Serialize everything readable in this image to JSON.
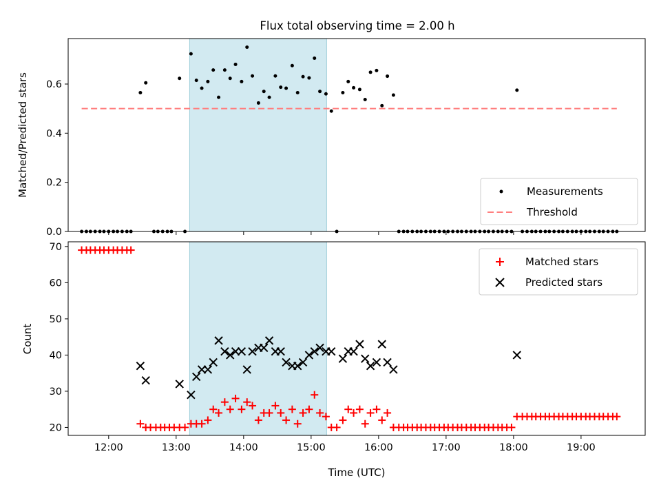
{
  "figure": {
    "title": "Flux total observing time = 2.00 h"
  },
  "colors": {
    "measurement": "#000000",
    "threshold": "#ff7f7f",
    "matched": "#ff0000",
    "predicted": "#000000",
    "span": "#add8e6"
  },
  "chart_data": [
    {
      "type": "scatter",
      "title": "Flux total observing time = 2.00 h",
      "xlabel": "",
      "ylabel": "Matched/Predicted stars",
      "xlim": [
        11.4,
        19.95
      ],
      "ylim": [
        0,
        0.785
      ],
      "yticks": [
        0.0,
        0.2,
        0.4,
        0.6
      ],
      "ytick_labels": [
        "0.0",
        "0.2",
        "0.4",
        "0.6"
      ],
      "highlight_span": [
        13.2,
        15.23
      ],
      "threshold": {
        "y": 0.5,
        "x": [
          11.6,
          19.53
        ]
      },
      "legend": {
        "position": "lower right",
        "entries": [
          "Measurements",
          "Threshold"
        ]
      },
      "series": [
        {
          "name": "Measurements",
          "points": [
            [
              11.6,
              0.0
            ],
            [
              11.67,
              0.0
            ],
            [
              11.73,
              0.0
            ],
            [
              11.8,
              0.0
            ],
            [
              11.87,
              0.0
            ],
            [
              11.93,
              0.0
            ],
            [
              12.0,
              0.0
            ],
            [
              12.07,
              0.0
            ],
            [
              12.13,
              0.0
            ],
            [
              12.2,
              0.0
            ],
            [
              12.27,
              0.0
            ],
            [
              12.33,
              0.0
            ],
            [
              12.47,
              0.565
            ],
            [
              12.55,
              0.605
            ],
            [
              12.67,
              0.0
            ],
            [
              12.73,
              0.0
            ],
            [
              12.8,
              0.0
            ],
            [
              12.87,
              0.0
            ],
            [
              12.93,
              0.0
            ],
            [
              13.05,
              0.623
            ],
            [
              13.13,
              0.0
            ],
            [
              13.22,
              0.723
            ],
            [
              13.3,
              0.615
            ],
            [
              13.38,
              0.583
            ],
            [
              13.47,
              0.61
            ],
            [
              13.55,
              0.657
            ],
            [
              13.63,
              0.546
            ],
            [
              13.72,
              0.657
            ],
            [
              13.8,
              0.623
            ],
            [
              13.88,
              0.68
            ],
            [
              13.97,
              0.61
            ],
            [
              14.05,
              0.75
            ],
            [
              14.13,
              0.633
            ],
            [
              14.22,
              0.523
            ],
            [
              14.3,
              0.57
            ],
            [
              14.38,
              0.546
            ],
            [
              14.47,
              0.633
            ],
            [
              14.55,
              0.587
            ],
            [
              14.63,
              0.583
            ],
            [
              14.72,
              0.675
            ],
            [
              14.8,
              0.565
            ],
            [
              14.88,
              0.63
            ],
            [
              14.97,
              0.625
            ],
            [
              15.05,
              0.705
            ],
            [
              15.13,
              0.57
            ],
            [
              15.22,
              0.56
            ],
            [
              15.3,
              0.49
            ],
            [
              15.38,
              0.0
            ],
            [
              15.47,
              0.565
            ],
            [
              15.55,
              0.61
            ],
            [
              15.63,
              0.585
            ],
            [
              15.72,
              0.578
            ],
            [
              15.8,
              0.537
            ],
            [
              15.88,
              0.648
            ],
            [
              15.97,
              0.655
            ],
            [
              16.05,
              0.512
            ],
            [
              16.13,
              0.632
            ],
            [
              16.22,
              0.555
            ],
            [
              16.3,
              0.0
            ],
            [
              16.37,
              0.0
            ],
            [
              16.43,
              0.0
            ],
            [
              16.5,
              0.0
            ],
            [
              16.57,
              0.0
            ],
            [
              16.63,
              0.0
            ],
            [
              16.7,
              0.0
            ],
            [
              16.77,
              0.0
            ],
            [
              16.83,
              0.0
            ],
            [
              16.9,
              0.0
            ],
            [
              16.97,
              0.0
            ],
            [
              17.03,
              0.0
            ],
            [
              17.1,
              0.0
            ],
            [
              17.17,
              0.0
            ],
            [
              17.23,
              0.0
            ],
            [
              17.3,
              0.0
            ],
            [
              17.37,
              0.0
            ],
            [
              17.43,
              0.0
            ],
            [
              17.5,
              0.0
            ],
            [
              17.57,
              0.0
            ],
            [
              17.63,
              0.0
            ],
            [
              17.7,
              0.0
            ],
            [
              17.77,
              0.0
            ],
            [
              17.83,
              0.0
            ],
            [
              17.9,
              0.0
            ],
            [
              17.97,
              0.0
            ],
            [
              18.05,
              0.575
            ],
            [
              18.13,
              0.0
            ],
            [
              18.2,
              0.0
            ],
            [
              18.27,
              0.0
            ],
            [
              18.33,
              0.0
            ],
            [
              18.4,
              0.0
            ],
            [
              18.47,
              0.0
            ],
            [
              18.53,
              0.0
            ],
            [
              18.6,
              0.0
            ],
            [
              18.67,
              0.0
            ],
            [
              18.73,
              0.0
            ],
            [
              18.8,
              0.0
            ],
            [
              18.87,
              0.0
            ],
            [
              18.93,
              0.0
            ],
            [
              19.0,
              0.0
            ],
            [
              19.07,
              0.0
            ],
            [
              19.13,
              0.0
            ],
            [
              19.2,
              0.0
            ],
            [
              19.27,
              0.0
            ],
            [
              19.33,
              0.0
            ],
            [
              19.4,
              0.0
            ],
            [
              19.47,
              0.0
            ],
            [
              19.53,
              0.0
            ]
          ]
        },
        {
          "name": "Threshold",
          "points": [
            [
              11.6,
              0.5
            ],
            [
              19.53,
              0.5
            ]
          ]
        }
      ]
    },
    {
      "type": "scatter",
      "title": "",
      "xlabel": "Time (UTC)",
      "ylabel": "Count",
      "xlim": [
        11.4,
        19.95
      ],
      "ylim": [
        17.8,
        71.3
      ],
      "yticks": [
        20,
        30,
        40,
        50,
        60,
        70
      ],
      "ytick_labels": [
        "20",
        "30",
        "40",
        "50",
        "60",
        "70"
      ],
      "xticks": [
        12,
        13,
        14,
        15,
        16,
        17,
        18,
        19
      ],
      "xtick_labels": [
        "12:00",
        "13:00",
        "14:00",
        "15:00",
        "16:00",
        "17:00",
        "18:00",
        "19:00"
      ],
      "highlight_span": [
        13.2,
        15.23
      ],
      "legend": {
        "position": "upper right",
        "entries": [
          "Matched stars",
          "Predicted stars"
        ]
      },
      "series": [
        {
          "name": "Matched stars",
          "points": [
            [
              11.6,
              69
            ],
            [
              11.67,
              69
            ],
            [
              11.73,
              69
            ],
            [
              11.8,
              69
            ],
            [
              11.87,
              69
            ],
            [
              11.93,
              69
            ],
            [
              12.0,
              69
            ],
            [
              12.07,
              69
            ],
            [
              12.13,
              69
            ],
            [
              12.2,
              69
            ],
            [
              12.27,
              69
            ],
            [
              12.33,
              69
            ],
            [
              12.47,
              21
            ],
            [
              12.55,
              20
            ],
            [
              12.62,
              20
            ],
            [
              12.7,
              20
            ],
            [
              12.77,
              20
            ],
            [
              12.83,
              20
            ],
            [
              12.9,
              20
            ],
            [
              12.97,
              20
            ],
            [
              13.05,
              20
            ],
            [
              13.13,
              20
            ],
            [
              13.22,
              21
            ],
            [
              13.3,
              21
            ],
            [
              13.38,
              21
            ],
            [
              13.47,
              22
            ],
            [
              13.55,
              25
            ],
            [
              13.63,
              24
            ],
            [
              13.72,
              27
            ],
            [
              13.8,
              25
            ],
            [
              13.88,
              28
            ],
            [
              13.97,
              25
            ],
            [
              14.05,
              27
            ],
            [
              14.13,
              26
            ],
            [
              14.22,
              22
            ],
            [
              14.3,
              24
            ],
            [
              14.38,
              24
            ],
            [
              14.47,
              26
            ],
            [
              14.55,
              24
            ],
            [
              14.63,
              22
            ],
            [
              14.72,
              25
            ],
            [
              14.8,
              21
            ],
            [
              14.88,
              24
            ],
            [
              14.97,
              25
            ],
            [
              15.05,
              29
            ],
            [
              15.13,
              24
            ],
            [
              15.22,
              23
            ],
            [
              15.3,
              20
            ],
            [
              15.38,
              20
            ],
            [
              15.47,
              22
            ],
            [
              15.55,
              25
            ],
            [
              15.63,
              24
            ],
            [
              15.72,
              25
            ],
            [
              15.8,
              21
            ],
            [
              15.88,
              24
            ],
            [
              15.97,
              25
            ],
            [
              16.05,
              22
            ],
            [
              16.13,
              24
            ],
            [
              16.22,
              20
            ],
            [
              16.3,
              20
            ],
            [
              16.37,
              20
            ],
            [
              16.43,
              20
            ],
            [
              16.5,
              20
            ],
            [
              16.57,
              20
            ],
            [
              16.63,
              20
            ],
            [
              16.7,
              20
            ],
            [
              16.77,
              20
            ],
            [
              16.83,
              20
            ],
            [
              16.9,
              20
            ],
            [
              16.97,
              20
            ],
            [
              17.03,
              20
            ],
            [
              17.1,
              20
            ],
            [
              17.17,
              20
            ],
            [
              17.23,
              20
            ],
            [
              17.3,
              20
            ],
            [
              17.37,
              20
            ],
            [
              17.43,
              20
            ],
            [
              17.5,
              20
            ],
            [
              17.57,
              20
            ],
            [
              17.63,
              20
            ],
            [
              17.7,
              20
            ],
            [
              17.77,
              20
            ],
            [
              17.83,
              20
            ],
            [
              17.9,
              20
            ],
            [
              17.97,
              20
            ],
            [
              18.05,
              23
            ],
            [
              18.13,
              23
            ],
            [
              18.2,
              23
            ],
            [
              18.27,
              23
            ],
            [
              18.33,
              23
            ],
            [
              18.4,
              23
            ],
            [
              18.47,
              23
            ],
            [
              18.53,
              23
            ],
            [
              18.6,
              23
            ],
            [
              18.67,
              23
            ],
            [
              18.73,
              23
            ],
            [
              18.8,
              23
            ],
            [
              18.87,
              23
            ],
            [
              18.93,
              23
            ],
            [
              19.0,
              23
            ],
            [
              19.07,
              23
            ],
            [
              19.13,
              23
            ],
            [
              19.2,
              23
            ],
            [
              19.27,
              23
            ],
            [
              19.33,
              23
            ],
            [
              19.4,
              23
            ],
            [
              19.47,
              23
            ],
            [
              19.53,
              23
            ]
          ]
        },
        {
          "name": "Predicted stars",
          "points": [
            [
              12.47,
              37
            ],
            [
              12.55,
              33
            ],
            [
              13.05,
              32
            ],
            [
              13.22,
              29
            ],
            [
              13.3,
              34
            ],
            [
              13.38,
              36
            ],
            [
              13.47,
              36
            ],
            [
              13.55,
              38
            ],
            [
              13.63,
              44
            ],
            [
              13.72,
              41
            ],
            [
              13.8,
              40
            ],
            [
              13.88,
              41
            ],
            [
              13.97,
              41
            ],
            [
              14.05,
              36
            ],
            [
              14.13,
              41
            ],
            [
              14.22,
              42
            ],
            [
              14.3,
              42
            ],
            [
              14.38,
              44
            ],
            [
              14.47,
              41
            ],
            [
              14.55,
              41
            ],
            [
              14.63,
              38
            ],
            [
              14.72,
              37
            ],
            [
              14.8,
              37
            ],
            [
              14.88,
              38
            ],
            [
              14.97,
              40
            ],
            [
              15.05,
              41
            ],
            [
              15.13,
              42
            ],
            [
              15.22,
              41
            ],
            [
              15.3,
              41
            ],
            [
              15.47,
              39
            ],
            [
              15.55,
              41
            ],
            [
              15.63,
              41
            ],
            [
              15.72,
              43
            ],
            [
              15.8,
              39
            ],
            [
              15.88,
              37
            ],
            [
              15.97,
              38
            ],
            [
              16.05,
              43
            ],
            [
              16.13,
              38
            ],
            [
              16.22,
              36
            ],
            [
              18.05,
              40
            ]
          ]
        }
      ]
    }
  ]
}
